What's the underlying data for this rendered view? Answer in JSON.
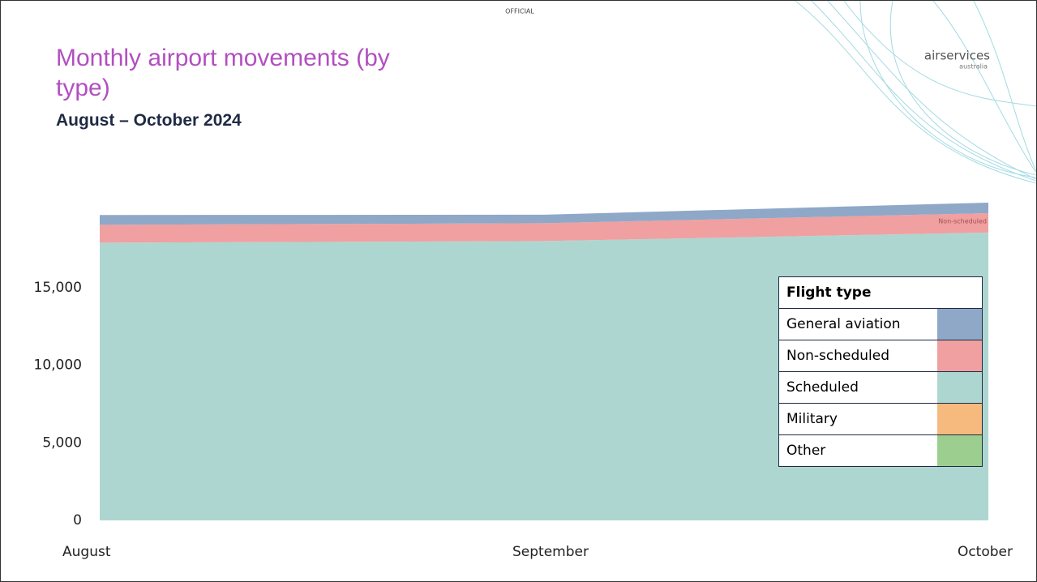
{
  "chart_data": {
    "type": "stacked_area",
    "title": "Monthly airport movements (by type)",
    "subtitle": "August – October 2024",
    "official_marking": "OFFICIAL",
    "logo": "airservices",
    "logo_sub": "australia",
    "annotation": "Non-scheduled",
    "legend_title": "Flight type",
    "categories": [
      "August",
      "September",
      "October"
    ],
    "series": [
      {
        "name": "General aviation",
        "color": "#8fa8c8",
        "values": [
          630,
          550,
          680
        ]
      },
      {
        "name": "Non-scheduled",
        "color": "#f0a0a0",
        "values": [
          1150,
          1150,
          1250
        ]
      },
      {
        "name": "Scheduled",
        "color": "#aed6d1",
        "values": [
          17900,
          18000,
          18550
        ]
      },
      {
        "name": "Military",
        "color": "#f6b97e",
        "values": [
          0,
          0,
          0
        ]
      },
      {
        "name": "Other",
        "color": "#9ccf8f",
        "values": [
          0,
          0,
          0
        ]
      }
    ],
    "ylim": [
      0,
      21000
    ],
    "yticks": [
      0,
      {
        "value": 5000,
        "label": "5,000"
      },
      {
        "value": 10000,
        "label": "10,000"
      },
      {
        "value": 15000,
        "label": "15,000"
      }
    ],
    "legend_position": "right"
  }
}
